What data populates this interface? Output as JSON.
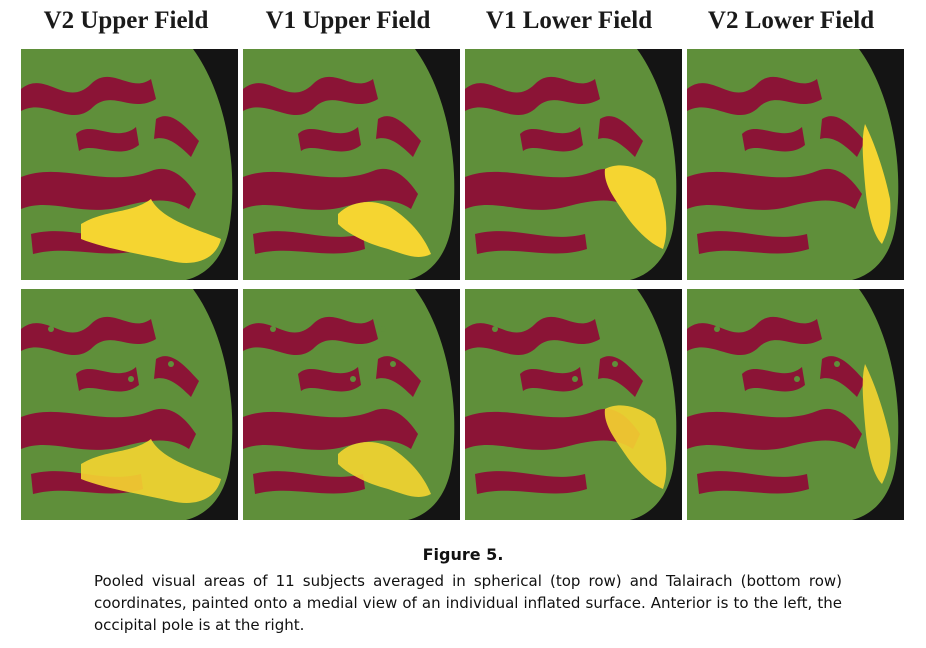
{
  "columns": [
    {
      "title": "V2 Upper Field"
    },
    {
      "title": "V1 Upper Field"
    },
    {
      "title": "V1 Lower Field"
    },
    {
      "title": "V2 Lower Field"
    }
  ],
  "rows": [
    {
      "coordinates": "spherical"
    },
    {
      "coordinates": "Talairach"
    }
  ],
  "colors": {
    "background": "#141414",
    "gyrus": "#5f8f3a",
    "sulcus": "#8b1436",
    "activation": "#f5d531"
  },
  "figure": {
    "label": "Figure 5.",
    "caption": "Pooled visual areas of 11 subjects averaged in spherical (top row) and Talairach (bottom row) coordinates, painted onto a medial view of an individual inflated surface. Anterior is to the left, the occipital pole is at the right."
  }
}
